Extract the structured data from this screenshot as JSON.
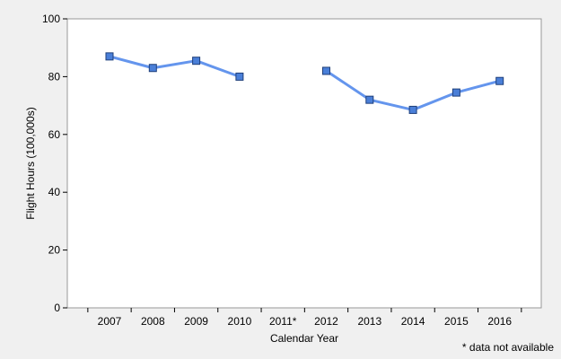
{
  "chart_data": {
    "type": "line",
    "title": "",
    "xlabel": "Calendar Year",
    "ylabel": "Flight Hours (100,000s)",
    "ylim": [
      0,
      100
    ],
    "yticks": [
      0,
      20,
      40,
      60,
      80,
      100
    ],
    "categories": [
      "2007",
      "2008",
      "2009",
      "2010",
      "2011*",
      "2012",
      "2013",
      "2014",
      "2015",
      "2016"
    ],
    "series": [
      {
        "values": [
          87,
          83,
          85.5,
          80,
          null,
          82,
          72,
          68.5,
          74.5,
          78.5
        ],
        "color": "#6495ed",
        "marker": "square",
        "marker_color": "#4a7fd8"
      }
    ],
    "grid": false,
    "legend": "none",
    "background": "#f0f0f0",
    "plot_background": "#ffffff"
  },
  "footnote": "* data not available"
}
